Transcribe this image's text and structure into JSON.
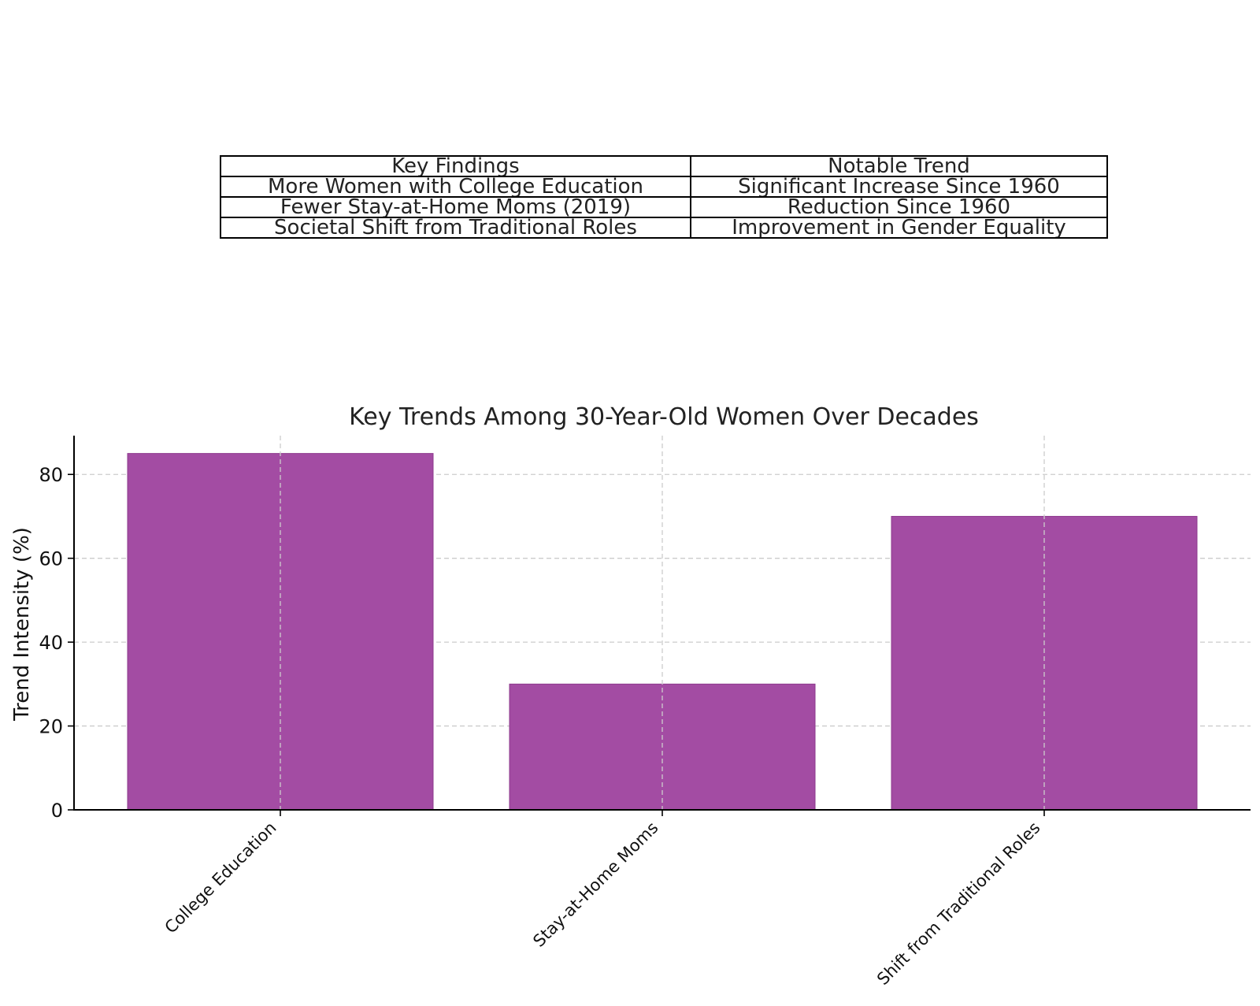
{
  "table": {
    "headers": [
      "Key Findings",
      "Notable Trend"
    ],
    "rows": [
      [
        "More Women with College Education",
        "Significant Increase Since 1960"
      ],
      [
        "Fewer Stay-at-Home Moms (2019)",
        "Reduction Since 1960"
      ],
      [
        "Societal Shift from Traditional Roles",
        "Improvement in Gender Equality"
      ]
    ]
  },
  "chart_data": {
    "type": "bar",
    "title": "Key Trends Among 30-Year-Old Women Over Decades",
    "xlabel": "",
    "ylabel": "Trend Intensity (%)",
    "categories": [
      "College Education",
      "Stay-at-Home Moms",
      "Shift from Traditional Roles"
    ],
    "values": [
      85,
      30,
      70
    ],
    "ylim": [
      0,
      89.25
    ],
    "yticks": [
      0,
      20,
      40,
      60,
      80
    ],
    "grid": true,
    "bar_color": "#a34ca3",
    "grid_color": "#cccccc"
  }
}
